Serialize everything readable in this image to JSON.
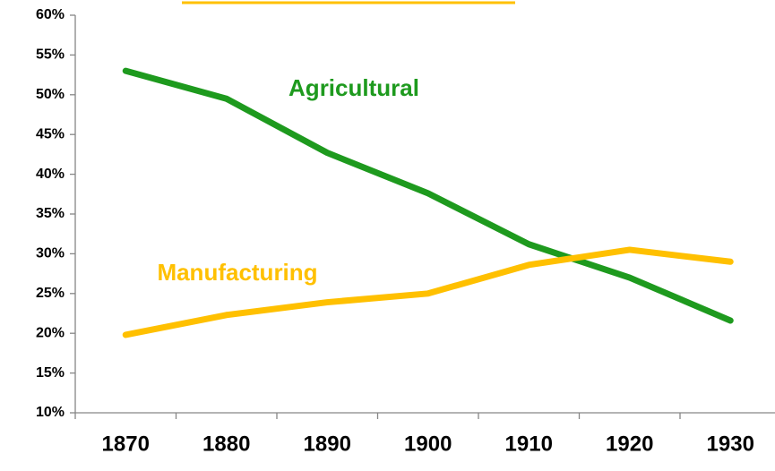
{
  "chart_data": {
    "type": "line",
    "categories": [
      "1870",
      "1880",
      "1890",
      "1900",
      "1910",
      "1920",
      "1930"
    ],
    "series": [
      {
        "name": "Agricultural",
        "color": "#1e9a1e",
        "values": [
          53,
          49.5,
          42.7,
          37.6,
          31.2,
          27,
          21.6
        ]
      },
      {
        "name": "Manufacturing",
        "color": "#ffc000",
        "values": [
          19.8,
          22.3,
          23.9,
          25,
          28.6,
          30.5,
          29
        ]
      }
    ],
    "ylim": [
      10,
      60
    ],
    "yticks": [
      {
        "value": 10,
        "label": "10%"
      },
      {
        "value": 15,
        "label": "15%"
      },
      {
        "value": 20,
        "label": "20%"
      },
      {
        "value": 25,
        "label": "25%"
      },
      {
        "value": 30,
        "label": "30%"
      },
      {
        "value": 35,
        "label": "35%"
      },
      {
        "value": 40,
        "label": "40%"
      },
      {
        "value": 45,
        "label": "45%"
      },
      {
        "value": 50,
        "label": "50%"
      },
      {
        "value": 55,
        "label": "55%"
      },
      {
        "value": 60,
        "label": "60%"
      }
    ],
    "grid": false
  }
}
